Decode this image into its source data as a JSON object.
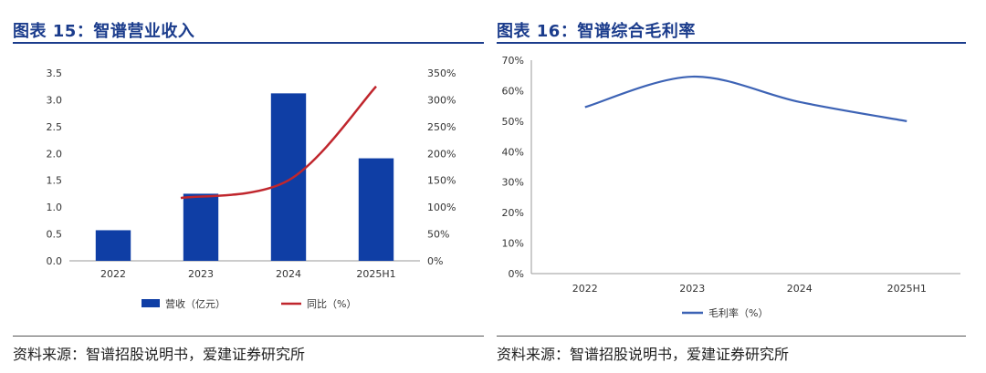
{
  "figures": [
    {
      "title": "图表 15：智谱营业收入",
      "source": "资料来源：智谱招股说明书，爱建证券研究所"
    },
    {
      "title": "图表 16：智谱综合毛利率",
      "source": "资料来源：智谱招股说明书，爱建证券研究所"
    }
  ],
  "colors": {
    "bar": "#0f3ea5",
    "line_red": "#c0262d",
    "line_blue": "#3d63b5",
    "title": "#1b3c8c"
  },
  "chart_data": [
    {
      "type": "bar",
      "categories": [
        "2022",
        "2023",
        "2024",
        "2025H1"
      ],
      "series": [
        {
          "name": "营收（亿元）",
          "type": "bar",
          "axis": "left",
          "values": [
            0.57,
            1.25,
            3.12,
            1.91
          ]
        },
        {
          "name": "同比（%）",
          "type": "line",
          "axis": "right",
          "values": [
            null,
            117,
            150,
            325
          ]
        }
      ],
      "y_left": {
        "ylim": [
          0,
          3.5
        ],
        "ticks": [
          "0.0",
          "0.5",
          "1.0",
          "1.5",
          "2.0",
          "2.5",
          "3.0",
          "3.5"
        ]
      },
      "y_right": {
        "ylim": [
          0,
          350
        ],
        "ticks": [
          "0%",
          "50%",
          "100%",
          "150%",
          "200%",
          "250%",
          "300%",
          "350%"
        ]
      },
      "legend_position": "bottom"
    },
    {
      "type": "line",
      "categories": [
        "2022",
        "2023",
        "2024",
        "2025H1"
      ],
      "series": [
        {
          "name": "毛利率（%）",
          "values": [
            54.6,
            64.6,
            56.3,
            50.0
          ]
        }
      ],
      "y": {
        "ylim": [
          0,
          70
        ],
        "ticks": [
          "0%",
          "10%",
          "20%",
          "30%",
          "40%",
          "50%",
          "60%",
          "70%"
        ]
      },
      "legend_position": "bottom"
    }
  ]
}
